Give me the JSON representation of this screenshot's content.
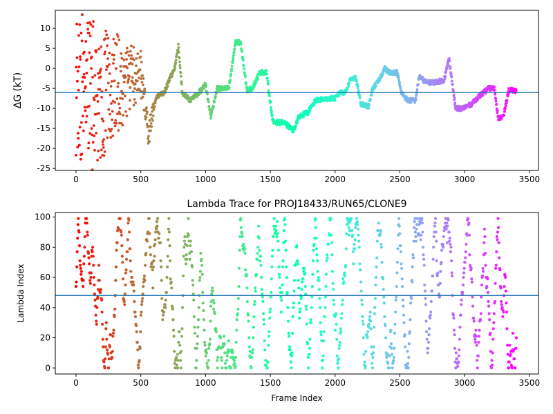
{
  "chart_data": [
    {
      "type": "scatter",
      "title": "",
      "xlabel": "",
      "ylabel": "ΔG (kT)",
      "xlim": [
        -160,
        3570
      ],
      "ylim": [
        -25.5,
        14.5
      ],
      "xticks": [
        0,
        500,
        1000,
        1500,
        2000,
        2500,
        3000,
        3500
      ],
      "yticks": [
        -25,
        -20,
        -15,
        -10,
        -5,
        0,
        5,
        10
      ],
      "hline": -6,
      "hline_color": "#1f77b4",
      "colormap": "rainbow (red → violet with frame index)",
      "n_frames": 3400,
      "trend_points": [
        [
          0,
          0
        ],
        [
          150,
          -8
        ],
        [
          300,
          -4
        ],
        [
          400,
          -3
        ],
        [
          500,
          -1
        ],
        [
          560,
          -16
        ],
        [
          620,
          -7
        ],
        [
          680,
          -6
        ],
        [
          760,
          0
        ],
        [
          790,
          5.5
        ],
        [
          820,
          -6
        ],
        [
          880,
          -8
        ],
        [
          950,
          -6
        ],
        [
          1000,
          -4
        ],
        [
          1040,
          -12
        ],
        [
          1090,
          -5
        ],
        [
          1180,
          -5
        ],
        [
          1230,
          6.5
        ],
        [
          1270,
          6.5
        ],
        [
          1320,
          -5.5
        ],
        [
          1360,
          -5
        ],
        [
          1420,
          -1
        ],
        [
          1470,
          -1
        ],
        [
          1520,
          -13.5
        ],
        [
          1600,
          -13.5
        ],
        [
          1680,
          -15.5
        ],
        [
          1720,
          -12
        ],
        [
          1790,
          -11
        ],
        [
          1850,
          -8
        ],
        [
          1960,
          -7.5
        ],
        [
          2000,
          -7.5
        ],
        [
          2040,
          -6
        ],
        [
          2080,
          -6
        ],
        [
          2120,
          -2.5
        ],
        [
          2160,
          -2.5
        ],
        [
          2200,
          -9
        ],
        [
          2260,
          -9.5
        ],
        [
          2290,
          -5
        ],
        [
          2340,
          -3
        ],
        [
          2380,
          0
        ],
        [
          2420,
          -1
        ],
        [
          2480,
          -1
        ],
        [
          2510,
          -6
        ],
        [
          2560,
          -8
        ],
        [
          2620,
          -8
        ],
        [
          2650,
          -2
        ],
        [
          2700,
          -3.5
        ],
        [
          2760,
          -3.5
        ],
        [
          2840,
          -3
        ],
        [
          2880,
          2.5
        ],
        [
          2930,
          -10
        ],
        [
          2980,
          -10
        ],
        [
          3050,
          -9
        ],
        [
          3110,
          -7
        ],
        [
          3150,
          -6
        ],
        [
          3180,
          -5
        ],
        [
          3230,
          -5
        ],
        [
          3260,
          -12.5
        ],
        [
          3300,
          -12
        ],
        [
          3340,
          -5.5
        ],
        [
          3400,
          -5.5
        ]
      ],
      "early_scatter_range": [
        -24,
        14
      ]
    },
    {
      "type": "scatter",
      "title": "Lambda Trace for PROJ18433/RUN65/CLONE9",
      "xlabel": "Frame Index",
      "ylabel": "Lambda Index",
      "xlim": [
        -160,
        3570
      ],
      "ylim": [
        -4,
        103
      ],
      "xticks": [
        0,
        500,
        1000,
        1500,
        2000,
        2500,
        3000,
        3500
      ],
      "yticks": [
        0,
        20,
        40,
        60,
        80,
        100
      ],
      "hline": 48,
      "hline_color": "#1f77b4",
      "colormap": "rainbow (red → violet with frame index)",
      "n_frames": 3400,
      "value_range": [
        0,
        99
      ]
    }
  ]
}
